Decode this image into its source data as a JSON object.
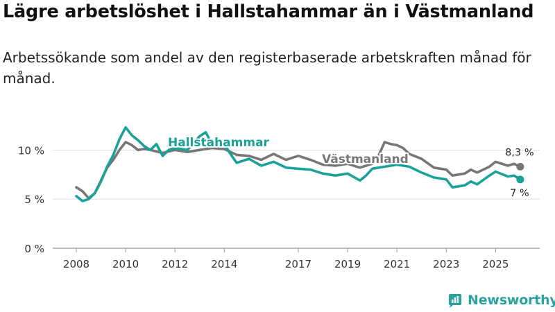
{
  "header": {
    "title": "Lägre arbetslöshet i Hallstahammar än i Västmanland",
    "subtitle": "Arbetssökande som andel av den registerbaserade arbetskraften månad för månad."
  },
  "brand": {
    "name": "Newsworthy"
  },
  "colors": {
    "hallstahammar": "#1aa198",
    "vastmanland": "#777777",
    "grid": "#dddddd",
    "axis": "#999999",
    "text": "#333333",
    "brand": "#2aa3a0"
  },
  "chart_data": {
    "type": "line",
    "title": "Lägre arbetslöshet i Hallstahammar än i Västmanland",
    "ylabel": "",
    "xlabel": "",
    "y_unit": "%",
    "ylim": [
      0,
      12
    ],
    "xlim": [
      2007.5,
      2026.9
    ],
    "grid": true,
    "legend": "direct labels on lines",
    "x_ticks": [
      2008,
      2010,
      2012,
      2014,
      2017,
      2019,
      2021,
      2023,
      2025
    ],
    "x_tick_labels": [
      "2008",
      "2010",
      "2012",
      "2014",
      "2017",
      "2019",
      "2021",
      "2023",
      "2025"
    ],
    "y_ticks": [
      0,
      5,
      10
    ],
    "y_tick_labels": [
      "0 %",
      "5 %",
      "10 %"
    ],
    "series": [
      {
        "name": "Hallstahammar",
        "end_label": "7 %",
        "points": [
          [
            2008.0,
            5.3
          ],
          [
            2008.25,
            4.8
          ],
          [
            2008.5,
            5.0
          ],
          [
            2008.75,
            5.6
          ],
          [
            2009.0,
            6.8
          ],
          [
            2009.25,
            8.3
          ],
          [
            2009.5,
            9.5
          ],
          [
            2009.75,
            11.1
          ],
          [
            2010.0,
            12.3
          ],
          [
            2010.25,
            11.5
          ],
          [
            2010.5,
            11.0
          ],
          [
            2010.75,
            10.4
          ],
          [
            2011.0,
            10.0
          ],
          [
            2011.25,
            10.6
          ],
          [
            2011.5,
            9.4
          ],
          [
            2011.75,
            10.0
          ],
          [
            2012.0,
            10.2
          ],
          [
            2012.5,
            10.0
          ],
          [
            2013.0,
            11.4
          ],
          [
            2013.25,
            11.8
          ],
          [
            2013.5,
            10.6
          ],
          [
            2014.0,
            10.6
          ],
          [
            2014.25,
            9.6
          ],
          [
            2014.5,
            8.7
          ],
          [
            2015.0,
            9.1
          ],
          [
            2015.5,
            8.4
          ],
          [
            2016.0,
            8.8
          ],
          [
            2016.5,
            8.2
          ],
          [
            2017.0,
            8.1
          ],
          [
            2017.5,
            8.0
          ],
          [
            2018.0,
            7.6
          ],
          [
            2018.5,
            7.4
          ],
          [
            2019.0,
            7.6
          ],
          [
            2019.5,
            6.9
          ],
          [
            2019.75,
            7.4
          ],
          [
            2020.0,
            8.1
          ],
          [
            2020.5,
            8.3
          ],
          [
            2021.0,
            8.5
          ],
          [
            2021.5,
            8.3
          ],
          [
            2022.0,
            7.7
          ],
          [
            2022.5,
            7.2
          ],
          [
            2023.0,
            7.0
          ],
          [
            2023.25,
            6.2
          ],
          [
            2023.75,
            6.4
          ],
          [
            2024.0,
            6.8
          ],
          [
            2024.25,
            6.5
          ],
          [
            2024.75,
            7.4
          ],
          [
            2025.0,
            7.8
          ],
          [
            2025.5,
            7.3
          ],
          [
            2025.75,
            7.4
          ],
          [
            2026.0,
            7.0
          ]
        ]
      },
      {
        "name": "Västmanland",
        "end_label": "8,3 %",
        "points": [
          [
            2008.0,
            6.2
          ],
          [
            2008.25,
            5.8
          ],
          [
            2008.5,
            5.1
          ],
          [
            2008.75,
            5.6
          ],
          [
            2009.0,
            6.9
          ],
          [
            2009.25,
            8.2
          ],
          [
            2009.5,
            9.0
          ],
          [
            2009.75,
            10.0
          ],
          [
            2010.0,
            10.8
          ],
          [
            2010.25,
            10.5
          ],
          [
            2010.5,
            10.0
          ],
          [
            2010.75,
            10.1
          ],
          [
            2011.0,
            10.0
          ],
          [
            2011.5,
            9.7
          ],
          [
            2012.0,
            10.0
          ],
          [
            2012.5,
            9.8
          ],
          [
            2013.0,
            10.0
          ],
          [
            2013.5,
            10.2
          ],
          [
            2014.0,
            10.1
          ],
          [
            2014.5,
            9.5
          ],
          [
            2015.0,
            9.4
          ],
          [
            2015.5,
            9.0
          ],
          [
            2016.0,
            9.6
          ],
          [
            2016.5,
            9.0
          ],
          [
            2017.0,
            9.4
          ],
          [
            2017.5,
            9.0
          ],
          [
            2018.0,
            8.5
          ],
          [
            2018.5,
            8.4
          ],
          [
            2019.0,
            8.6
          ],
          [
            2019.5,
            8.2
          ],
          [
            2020.0,
            8.6
          ],
          [
            2020.25,
            9.4
          ],
          [
            2020.5,
            10.8
          ],
          [
            2020.75,
            10.6
          ],
          [
            2021.0,
            10.5
          ],
          [
            2021.25,
            10.2
          ],
          [
            2021.5,
            9.6
          ],
          [
            2022.0,
            9.1
          ],
          [
            2022.5,
            8.2
          ],
          [
            2023.0,
            8.0
          ],
          [
            2023.25,
            7.4
          ],
          [
            2023.75,
            7.6
          ],
          [
            2024.0,
            8.0
          ],
          [
            2024.25,
            7.7
          ],
          [
            2024.75,
            8.3
          ],
          [
            2025.0,
            8.8
          ],
          [
            2025.5,
            8.4
          ],
          [
            2025.75,
            8.6
          ],
          [
            2026.0,
            8.3
          ]
        ]
      }
    ]
  }
}
